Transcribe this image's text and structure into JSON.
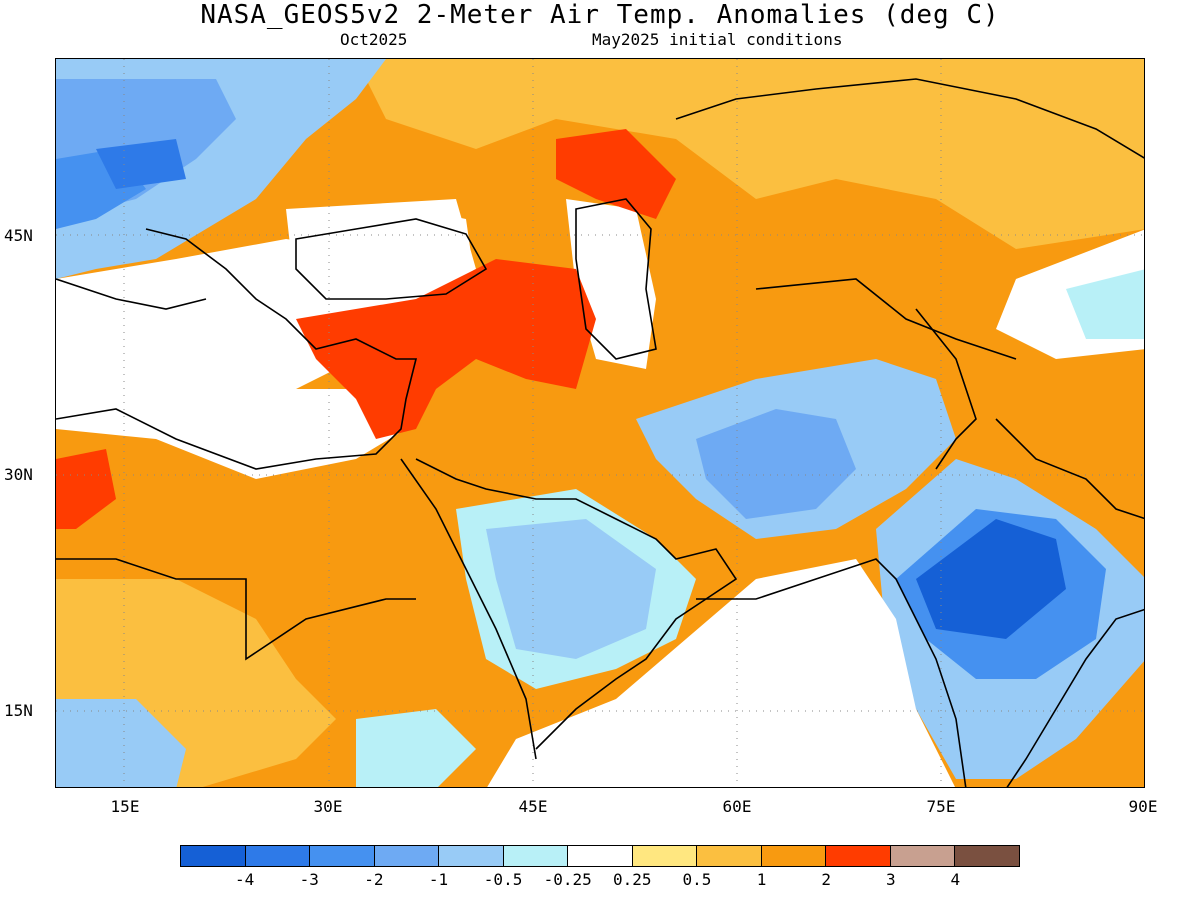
{
  "title": "NASA_GEOS5v2 2-Meter Air Temp. Anomalies (deg C)",
  "subtitle_left": "Oct2025",
  "subtitle_right": "May2025 initial conditions",
  "lat_labels": [
    "45N",
    "30N",
    "15N"
  ],
  "lon_labels": [
    "15E",
    "30E",
    "45E",
    "60E",
    "75E",
    "90E"
  ],
  "colorbar": {
    "colors": [
      "#1560d6",
      "#2e7ae8",
      "#4591f0",
      "#6eaaf3",
      "#98cbf6",
      "#b8f0f7",
      "#ffffff",
      "#ffe780",
      "#fbbf40",
      "#f89a10",
      "#ff3c00",
      "#c8a090",
      "#7a5040"
    ],
    "labels": [
      "-4",
      "-3",
      "-2",
      "-1",
      "-0.5",
      "-0.25",
      "0.25",
      "0.5",
      "1",
      "2",
      "3",
      "4"
    ]
  }
}
